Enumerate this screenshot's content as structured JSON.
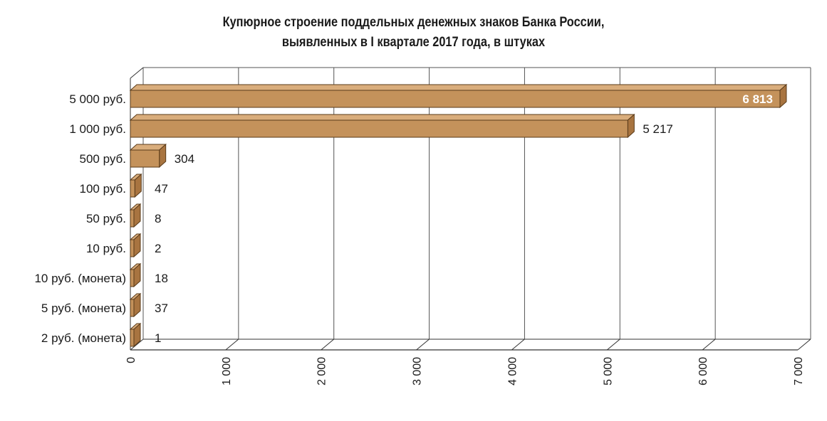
{
  "chart_data": {
    "type": "bar",
    "orientation": "horizontal",
    "title": [
      "Купюрное строение поддельных денежных знаков Банка России,",
      "выявленных в I квартале 2017 года, в штуках"
    ],
    "categories": [
      "5 000 руб.",
      "1 000 руб.",
      "500 руб.",
      "100 руб.",
      "50 руб.",
      "10 руб.",
      "10 руб. (монета)",
      "5 руб. (монета)",
      "2 руб. (монета)"
    ],
    "values": [
      6813,
      5217,
      304,
      47,
      8,
      2,
      18,
      37,
      1
    ],
    "value_labels": [
      "6 813",
      "5 217",
      "304",
      "47",
      "8",
      "2",
      "18",
      "37",
      "1"
    ],
    "xlim": [
      0,
      7000
    ],
    "ticks": [
      0,
      1000,
      2000,
      3000,
      4000,
      5000,
      6000,
      7000
    ],
    "tick_labels": [
      "0",
      "1 000",
      "2 000",
      "3 000",
      "4 000",
      "5 000",
      "6 000",
      "7 000"
    ],
    "grid": true,
    "style": "3d",
    "colors": {
      "bar": "#c4925b",
      "bar_side": "#a87440",
      "bar_top": "#d9ad7c",
      "grid": "#555555",
      "axis": "#333333"
    }
  }
}
